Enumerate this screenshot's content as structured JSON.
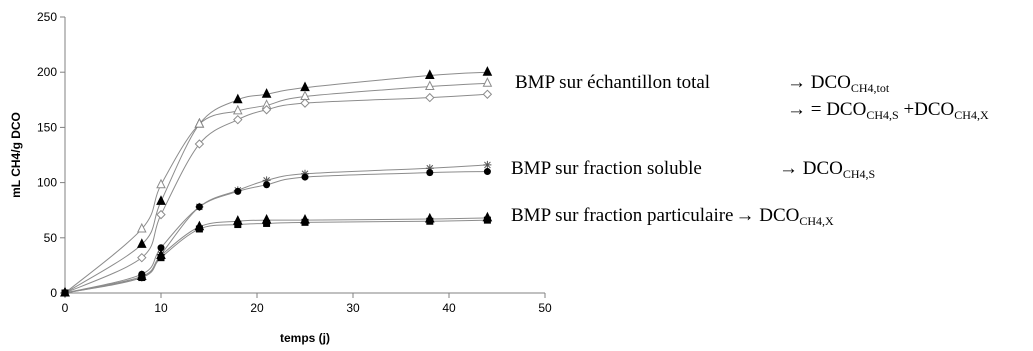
{
  "chart_data": {
    "type": "line",
    "title": "",
    "xlabel": "temps (j)",
    "ylabel": "mL CH4/g DCO",
    "xlim": [
      0,
      50
    ],
    "ylim": [
      0,
      250
    ],
    "xticks": [
      0,
      10,
      20,
      30,
      40,
      50
    ],
    "yticks": [
      0,
      50,
      100,
      150,
      200,
      250
    ],
    "grid": false,
    "series": [
      {
        "marker": "filled-triangle",
        "x": [
          0,
          8,
          10,
          14,
          18,
          21,
          25,
          38,
          44
        ],
        "y": [
          0,
          44,
          83,
          153,
          175,
          180,
          186,
          197,
          200
        ]
      },
      {
        "marker": "open-triangle",
        "x": [
          0,
          8,
          10,
          14,
          18,
          21,
          25,
          38,
          44
        ],
        "y": [
          0,
          58,
          98,
          153,
          165,
          170,
          178,
          187,
          190
        ]
      },
      {
        "marker": "open-diamond",
        "x": [
          0,
          8,
          10,
          14,
          18,
          21,
          25,
          38,
          44
        ],
        "y": [
          0,
          32,
          71,
          135,
          157,
          166,
          172,
          177,
          180
        ]
      },
      {
        "marker": "star",
        "x": [
          0,
          8,
          10,
          14,
          18,
          21,
          25,
          38,
          44
        ],
        "y": [
          0,
          14,
          35,
          78,
          93,
          102,
          108,
          113,
          116
        ]
      },
      {
        "marker": "filled-circle",
        "x": [
          0,
          8,
          10,
          14,
          18,
          21,
          25,
          38,
          44
        ],
        "y": [
          0,
          17,
          41,
          78,
          92,
          98,
          105,
          109,
          110
        ]
      },
      {
        "marker": "filled-triangle",
        "x": [
          0,
          8,
          10,
          14,
          18,
          21,
          25,
          38,
          44
        ],
        "y": [
          0,
          15,
          34,
          60,
          65,
          66,
          66,
          67,
          68
        ]
      },
      {
        "marker": "filled-square",
        "x": [
          0,
          8,
          10,
          14,
          18,
          21,
          25,
          38,
          44
        ],
        "y": [
          0,
          14,
          32,
          58,
          62,
          63,
          64,
          65,
          66
        ]
      }
    ],
    "annotations": {
      "total_label": "BMP sur échantillon total",
      "total_arrow": "→ DCO",
      "total_sub": "CH4,tot",
      "sum_arrow": "→ = DCO",
      "sum_sub1": "CH4,S",
      "sum_mid": " +DCO",
      "sum_sub2": "CH4,X",
      "soluble_label": "BMP sur fraction soluble",
      "soluble_arrow": "→ DCO",
      "soluble_sub": "CH4,S",
      "part_label": "BMP sur fraction particulaire",
      "part_arrow": "→ DCO",
      "part_sub": "CH4,X"
    }
  },
  "colors": {
    "marker_fill": "#000000",
    "curve": "#8c8c8c",
    "axis": "#808080"
  }
}
